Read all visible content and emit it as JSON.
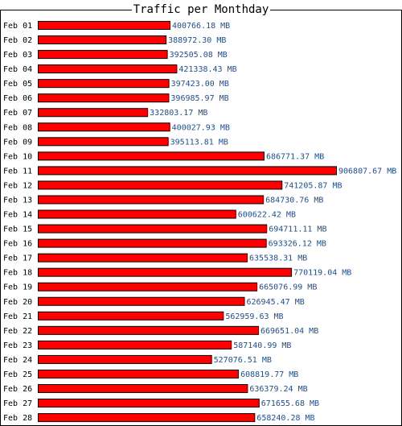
{
  "chart_data": {
    "type": "bar",
    "orientation": "horizontal",
    "title": "Traffic per Monthday",
    "unit": "MB",
    "bar_color": "#ff0000",
    "bar_outline_color": "#000000",
    "label_color": "#1f4e96",
    "categories": [
      "Feb 01",
      "Feb 02",
      "Feb 03",
      "Feb 04",
      "Feb 05",
      "Feb 06",
      "Feb 07",
      "Feb 08",
      "Feb 09",
      "Feb 10",
      "Feb 11",
      "Feb 12",
      "Feb 13",
      "Feb 14",
      "Feb 15",
      "Feb 16",
      "Feb 17",
      "Feb 18",
      "Feb 19",
      "Feb 20",
      "Feb 21",
      "Feb 22",
      "Feb 23",
      "Feb 24",
      "Feb 25",
      "Feb 26",
      "Feb 27",
      "Feb 28"
    ],
    "values": [
      400766.18,
      388972.3,
      392505.08,
      421338.43,
      397423.0,
      396985.97,
      332803.17,
      400027.93,
      395113.81,
      686771.37,
      906807.67,
      741205.87,
      684730.76,
      600622.42,
      694711.11,
      693326.12,
      635538.31,
      770119.04,
      665076.99,
      626945.47,
      562959.63,
      669651.04,
      587140.99,
      527076.51,
      608819.77,
      636379.24,
      671655.68,
      658240.28
    ],
    "value_labels": [
      "400766.18 MB",
      "388972.30 MB",
      "392505.08 MB",
      "421338.43 MB",
      "397423.00 MB",
      "396985.97 MB",
      "332803.17 MB",
      "400027.93 MB",
      "395113.81 MB",
      "686771.37 MB",
      "906807.67 MB",
      "741205.87 MB",
      "684730.76 MB",
      "600622.42 MB",
      "694711.11 MB",
      "693326.12 MB",
      "635538.31 MB",
      "770119.04 MB",
      "665076.99 MB",
      "626945.47 MB",
      "562959.63 MB",
      "669651.04 MB",
      "587140.99 MB",
      "527076.51 MB",
      "608819.77 MB",
      "636379.24 MB",
      "671655.68 MB",
      "658240.28 MB"
    ]
  }
}
